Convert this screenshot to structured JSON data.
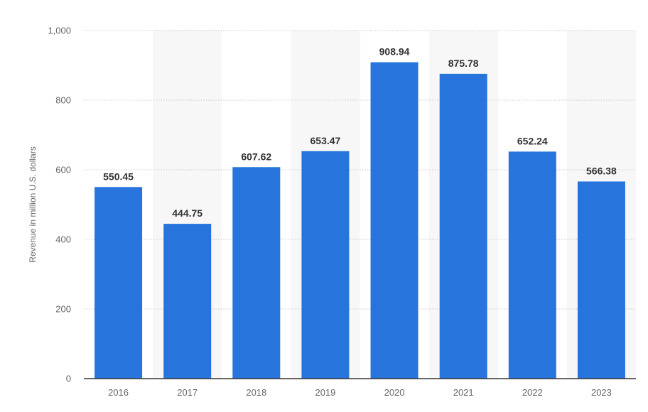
{
  "chart_data": {
    "type": "bar",
    "title": "",
    "xlabel": "",
    "ylabel": "Revenue in million U.S. dollars",
    "categories": [
      "2016",
      "2017",
      "2018",
      "2019",
      "2020",
      "2021",
      "2022",
      "2023"
    ],
    "values": [
      550.45,
      444.75,
      607.62,
      653.47,
      908.94,
      875.78,
      652.24,
      566.38
    ],
    "value_labels": [
      "550.45",
      "444.75",
      "607.62",
      "653.47",
      "908.94",
      "875.78",
      "652.24",
      "566.38"
    ],
    "ylim": [
      0,
      1000
    ],
    "yticks": [
      0,
      200,
      400,
      600,
      800,
      1000
    ],
    "ytick_labels": [
      "0",
      "200",
      "400",
      "600",
      "800",
      "1,000"
    ],
    "grid": true,
    "legend": "none"
  },
  "colors": {
    "bar": "#2775dc",
    "band": "#f7f7f7",
    "grid": "#c9c9c9",
    "axis": "#333333"
  }
}
